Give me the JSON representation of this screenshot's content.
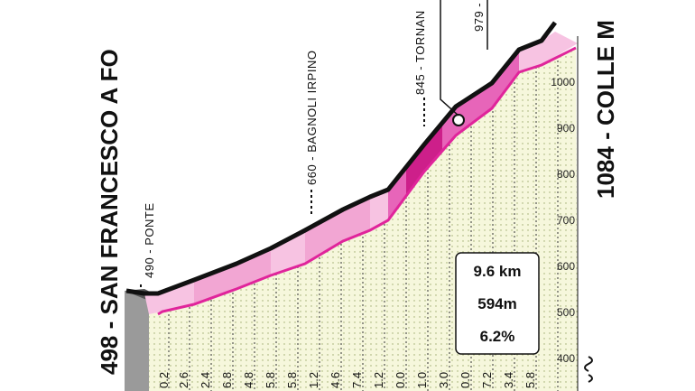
{
  "start": {
    "label": "498 - SAN FRANCESCO A FO"
  },
  "finish": {
    "label": "1084 - COLLE M"
  },
  "waypoints": [
    {
      "label": "490 - PONTE"
    },
    {
      "label": "660 - BAGNOLI IRPINO"
    },
    {
      "label": "845 - TORNAN"
    },
    {
      "label": "979 -"
    }
  ],
  "elevation_ticks": [
    "1000",
    "900",
    "800",
    "700",
    "600",
    "500",
    "400"
  ],
  "segment_labels": [
    "0.2",
    "2.6",
    "2.4",
    "6.8",
    "4.8",
    "5.8",
    "5.8",
    "1.2",
    "4.6",
    "7.4",
    "1.2",
    "0.0",
    "1.0",
    "3.0",
    "0.0",
    "7.2",
    "3.4",
    "5.8"
  ],
  "stats": {
    "distance": "9.6 km",
    "gain": "594m",
    "gradient": "6.2%"
  },
  "colors": {
    "profile_light": "#f7c3e2",
    "profile_medium": "#e765b9",
    "profile_dark": "#cd1f8a",
    "ground": "#f5f6d8",
    "outline": "#111111"
  }
}
